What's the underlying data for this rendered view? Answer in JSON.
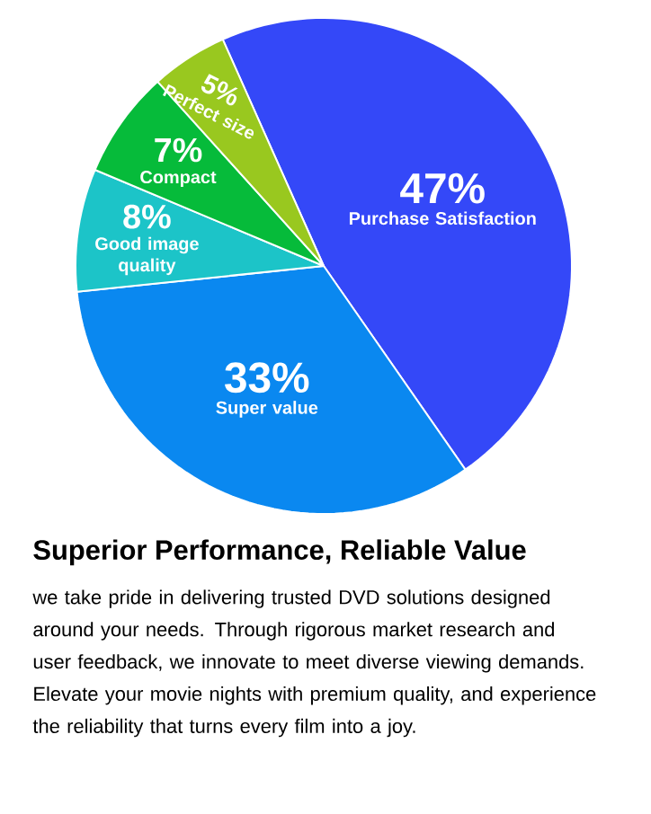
{
  "chart_data": {
    "type": "pie",
    "title": "Superior Performance, Reliable Value",
    "categories": [
      "Purchase Satisfaction",
      "Super value",
      "Good image quality",
      "Compact",
      "Perfect size"
    ],
    "values": [
      47,
      33,
      8,
      7,
      5
    ],
    "value_labels": [
      "47%",
      "33%",
      "8%",
      "7%",
      "5%"
    ],
    "colors": [
      "#3448f8",
      "#0a88f0",
      "#1cc4c8",
      "#06bb3a",
      "#99c81f"
    ],
    "annotations": [
      "we take pride in delivering trusted DVD solutions designed around your needs.  Through rigorous market research and user feedback, we innovate to meet diverse viewing demands.  Elevate your movie nights with premium quality, and experience the reliability that turns every film into a joy."
    ]
  }
}
